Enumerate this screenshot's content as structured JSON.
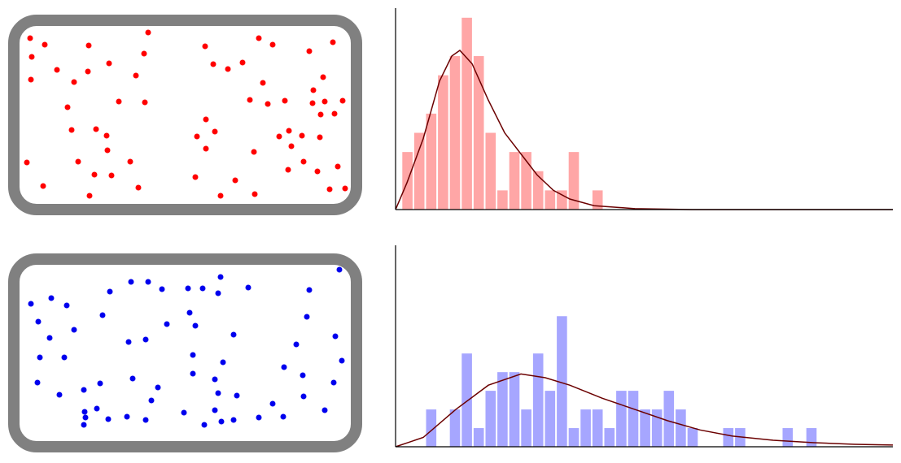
{
  "chart_data": [
    {
      "type": "scatter",
      "color": "#ff0000",
      "xlim": [
        0,
        408
      ],
      "ylim": [
        0,
        220
      ],
      "x": [
        13,
        31,
        15,
        14,
        46,
        67,
        84,
        85,
        110,
        158,
        153,
        143,
        122,
        154,
        59,
        64,
        94,
        107,
        108,
        136,
        72,
        92,
        113,
        9,
        29,
        86,
        146,
        228,
        238,
        256,
        274,
        294,
        311,
        356,
        385,
        373,
        361,
        299,
        283,
        305,
        326,
        360,
        375,
        397,
        387,
        370,
        229,
        240,
        218,
        229,
        319,
        331,
        347,
        334,
        369,
        288,
        330,
        349,
        366,
        391,
        216,
        265,
        247,
        289,
        381,
        400
      ],
      "values": [
        205,
        197,
        182,
        154,
        166,
        151,
        164,
        196,
        174,
        212,
        186,
        159,
        127,
        126,
        120,
        92,
        93,
        85,
        67,
        53,
        53,
        37,
        36,
        52,
        23,
        11,
        21,
        195,
        173,
        167,
        175,
        205,
        197,
        189,
        200,
        157,
        141,
        150,
        129,
        124,
        128,
        125,
        127,
        128,
        112,
        111,
        105,
        90,
        84,
        69,
        84,
        91,
        85,
        72,
        83,
        65,
        43,
        53,
        41,
        47,
        34,
        30,
        11,
        13,
        19,
        20
      ]
    },
    {
      "type": "histogram",
      "color": "#ffa6a6",
      "xlim": [
        0,
        41.85
      ],
      "ylim": [
        0,
        10.5
      ],
      "bins": [
        0.5,
        1.5,
        2.5,
        3.5,
        4.5,
        5.5,
        6.5,
        7.5,
        8.5,
        9.5,
        10.5,
        11.5,
        12.5,
        13.5,
        14.5,
        15.5,
        16.5,
        17.5
      ],
      "values": [
        3,
        4,
        5,
        7,
        8,
        10,
        8,
        4,
        1,
        3,
        3,
        2,
        1,
        1,
        3,
        0,
        1
      ],
      "curve": {
        "color": "#6b0000",
        "x": [
          0,
          0.96,
          2.33,
          3.7,
          4.73,
          5.41,
          6.44,
          7.81,
          9.18,
          10.55,
          11.92,
          13.29,
          14.66,
          16.71,
          20.14,
          24.93,
          41.85
        ],
        "values": [
          0,
          1.4,
          3.7,
          6.7,
          8.0,
          8.3,
          7.6,
          5.7,
          4.0,
          2.9,
          1.8,
          1.0,
          0.55,
          0.2,
          0.05,
          0,
          0
        ]
      }
    },
    {
      "type": "scatter",
      "color": "#0000ee",
      "xlim": [
        0,
        408
      ],
      "ylim": [
        0,
        217
      ],
      "x": [
        14,
        39,
        58,
        23,
        37,
        67,
        102,
        111,
        137,
        158,
        175,
        207,
        225,
        244,
        247,
        281,
        209,
        216,
        181,
        356,
        393,
        353,
        388,
        263,
        155,
        134,
        340,
        25,
        55,
        213,
        250,
        325,
        396,
        22,
        49,
        79,
        99,
        139,
        170,
        162,
        213,
        240,
        267,
        244,
        386,
        348,
        349,
        311,
        375,
        95,
        80,
        81,
        79,
        109,
        132,
        155,
        202,
        240,
        227,
        248,
        263,
        294,
        324
      ],
      "values": [
        169,
        176,
        167,
        147,
        127,
        137,
        155,
        184,
        196,
        196,
        187,
        188,
        188,
        182,
        202,
        189,
        158,
        142,
        144,
        186,
        211,
        153,
        129,
        131,
        125,
        122,
        119,
        103,
        103,
        106,
        97,
        91,
        99,
        72,
        57,
        63,
        71,
        77,
        66,
        50,
        83,
        76,
        56,
        59,
        72,
        81,
        55,
        46,
        38,
        40,
        36,
        29,
        20,
        27,
        30,
        26,
        35,
        38,
        20,
        24,
        26,
        29,
        30
      ]
    },
    {
      "type": "histogram",
      "color": "#a6a6ff",
      "xlim": [
        0,
        41.85
      ],
      "ylim": [
        0,
        10.8
      ],
      "bins": [
        0.5,
        1.5,
        2.5,
        3.5,
        4.5,
        5.5,
        6.5,
        7.5,
        8.5,
        9.5,
        10.5,
        11.5,
        12.5,
        13.5,
        14.5,
        15.5,
        16.5,
        17.5,
        18.5,
        19.5,
        20.5,
        21.5,
        22.5,
        23.5,
        24.5,
        25.5,
        26.5,
        27.5,
        28.5,
        29.5,
        30.5,
        31.5,
        32.5,
        33.5,
        34.5,
        35.5
      ],
      "values": [
        0,
        0,
        2,
        0,
        2,
        5,
        1,
        3,
        4,
        4,
        2,
        5,
        3,
        7,
        1,
        2,
        2,
        1,
        3,
        3,
        2,
        2,
        3,
        2,
        1,
        0,
        0,
        1,
        1,
        0,
        0,
        0,
        1,
        0,
        1
      ],
      "curve": {
        "color": "#6b0000",
        "x": [
          0,
          2.33,
          5.07,
          7.81,
          10.55,
          12.6,
          14.66,
          17.4,
          20.14,
          22.88,
          25.62,
          28.36,
          31.78,
          35.21,
          38.63,
          41.85
        ],
        "values": [
          0,
          0.5,
          2.0,
          3.3,
          3.9,
          3.7,
          3.3,
          2.6,
          2.0,
          1.4,
          0.9,
          0.57,
          0.35,
          0.22,
          0.13,
          0.09
        ]
      }
    }
  ]
}
